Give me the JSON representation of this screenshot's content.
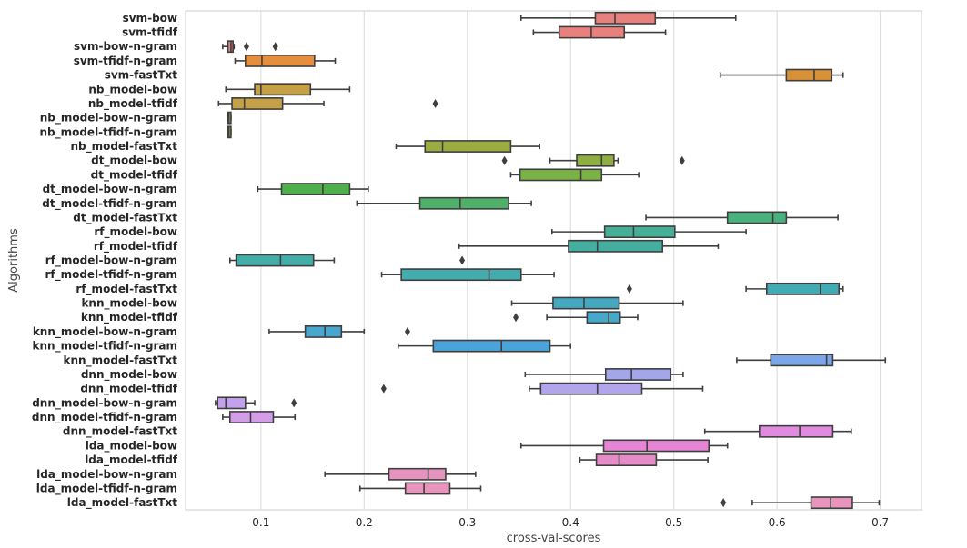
{
  "chart_data": {
    "type": "boxplot",
    "orientation": "horizontal",
    "xlabel": "cross-val-scores",
    "ylabel": "Algorithms",
    "xlim": [
      0.027,
      0.74
    ],
    "xticks": [
      0.1,
      0.2,
      0.3,
      0.4,
      0.5,
      0.6,
      0.7
    ],
    "xtick_labels": [
      "0.1",
      "0.2",
      "0.3",
      "0.4",
      "0.5",
      "0.6",
      "0.7"
    ],
    "grid": "vertical",
    "categories": [
      "svm-bow",
      "svm-tfidf",
      "svm-bow-n-gram",
      "svm-tfidf-n-gram",
      "svm-fastTxt",
      "nb_model-bow",
      "nb_model-tfidf",
      "nb_model-bow-n-gram",
      "nb_model-tfidf-n-gram",
      "nb_model-fastTxt",
      "dt_model-bow",
      "dt_model-tfidf",
      "dt_model-bow-n-gram",
      "dt_model-tfidf-n-gram",
      "dt_model-fastTxt",
      "rf_model-bow",
      "rf_model-tfidf",
      "rf_model-bow-n-gram",
      "rf_model-tfidf-n-gram",
      "rf_model-fastTxt",
      "knn_model-bow",
      "knn_model-tfidf",
      "knn_model-bow-n-gram",
      "knn_model-tfidf-n-gram",
      "knn_model-fastTxt",
      "dnn_model-bow",
      "dnn_model-tfidf",
      "dnn_model-bow-n-gram",
      "dnn_model-tfidf-n-gram",
      "dnn_model-fastTxt",
      "lda_model-bow",
      "lda_model-tfidf",
      "lda_model-bow-n-gram",
      "lda_model-tfidf-n-gram",
      "lda_model-fastTxt"
    ],
    "boxes": [
      {
        "min": 0.352,
        "q1": 0.424,
        "median": 0.443,
        "q3": 0.482,
        "max": 0.56,
        "outliers": [],
        "color": "#e8817e"
      },
      {
        "min": 0.364,
        "q1": 0.389,
        "median": 0.42,
        "q3": 0.452,
        "max": 0.492,
        "outliers": [],
        "color": "#e8817e"
      },
      {
        "min": 0.063,
        "q1": 0.068,
        "median": 0.071,
        "q3": 0.073,
        "max": 0.074,
        "outliers": [
          0.086,
          0.114
        ],
        "color": "#e8817e"
      },
      {
        "min": 0.075,
        "q1": 0.085,
        "median": 0.101,
        "q3": 0.152,
        "max": 0.172,
        "outliers": [],
        "color": "#e58e3e"
      },
      {
        "min": 0.545,
        "q1": 0.609,
        "median": 0.636,
        "q3": 0.653,
        "max": 0.664,
        "outliers": [],
        "color": "#d99138"
      },
      {
        "min": 0.066,
        "q1": 0.094,
        "median": 0.1,
        "q3": 0.148,
        "max": 0.186,
        "outliers": [],
        "color": "#c6a046"
      },
      {
        "min": 0.059,
        "q1": 0.072,
        "median": 0.084,
        "q3": 0.121,
        "max": 0.161,
        "outliers": [
          0.269
        ],
        "color": "#c6a046"
      },
      {
        "min": 0.068,
        "q1": 0.068,
        "median": 0.069,
        "q3": 0.071,
        "max": 0.071,
        "outliers": [],
        "color": "#b9a645"
      },
      {
        "min": 0.068,
        "q1": 0.068,
        "median": 0.069,
        "q3": 0.071,
        "max": 0.071,
        "outliers": [],
        "color": "#a9ab43"
      },
      {
        "min": 0.231,
        "q1": 0.259,
        "median": 0.276,
        "q3": 0.342,
        "max": 0.37,
        "outliers": [],
        "color": "#9cab40"
      },
      {
        "min": 0.38,
        "q1": 0.406,
        "median": 0.43,
        "q3": 0.442,
        "max": 0.446,
        "outliers": [
          0.336,
          0.508
        ],
        "color": "#8fae42"
      },
      {
        "min": 0.342,
        "q1": 0.351,
        "median": 0.41,
        "q3": 0.43,
        "max": 0.466,
        "outliers": [],
        "color": "#7ab245"
      },
      {
        "min": 0.097,
        "q1": 0.12,
        "median": 0.16,
        "q3": 0.186,
        "max": 0.204,
        "outliers": [],
        "color": "#4eb04a"
      },
      {
        "min": 0.193,
        "q1": 0.254,
        "median": 0.293,
        "q3": 0.34,
        "max": 0.362,
        "outliers": [],
        "color": "#4fb06a"
      },
      {
        "min": 0.473,
        "q1": 0.552,
        "median": 0.596,
        "q3": 0.609,
        "max": 0.659,
        "outliers": [],
        "color": "#48b17e"
      },
      {
        "min": 0.382,
        "q1": 0.433,
        "median": 0.461,
        "q3": 0.501,
        "max": 0.57,
        "outliers": [],
        "color": "#45b095"
      },
      {
        "min": 0.292,
        "q1": 0.398,
        "median": 0.426,
        "q3": 0.489,
        "max": 0.543,
        "outliers": [],
        "color": "#45af9f"
      },
      {
        "min": 0.07,
        "q1": 0.076,
        "median": 0.119,
        "q3": 0.151,
        "max": 0.171,
        "outliers": [
          0.295
        ],
        "color": "#43ada8"
      },
      {
        "min": 0.217,
        "q1": 0.236,
        "median": 0.321,
        "q3": 0.352,
        "max": 0.384,
        "outliers": [],
        "color": "#42acaf"
      },
      {
        "min": 0.57,
        "q1": 0.59,
        "median": 0.642,
        "q3": 0.66,
        "max": 0.664,
        "outliers": [
          0.457
        ],
        "color": "#41abb5"
      },
      {
        "min": 0.343,
        "q1": 0.383,
        "median": 0.413,
        "q3": 0.447,
        "max": 0.509,
        "outliers": [],
        "color": "#44a9c0"
      },
      {
        "min": 0.377,
        "q1": 0.416,
        "median": 0.437,
        "q3": 0.448,
        "max": 0.465,
        "outliers": [
          0.347
        ],
        "color": "#47a8c7"
      },
      {
        "min": 0.108,
        "q1": 0.143,
        "median": 0.162,
        "q3": 0.178,
        "max": 0.2,
        "outliers": [
          0.242
        ],
        "color": "#49a6cd"
      },
      {
        "min": 0.233,
        "q1": 0.267,
        "median": 0.333,
        "q3": 0.38,
        "max": 0.4,
        "outliers": [],
        "color": "#4aa3d9"
      },
      {
        "min": 0.561,
        "q1": 0.594,
        "median": 0.648,
        "q3": 0.654,
        "max": 0.705,
        "outliers": [],
        "color": "#7ca6e6"
      },
      {
        "min": 0.356,
        "q1": 0.434,
        "median": 0.459,
        "q3": 0.497,
        "max": 0.509,
        "outliers": [],
        "color": "#a4a6ec"
      },
      {
        "min": 0.36,
        "q1": 0.371,
        "median": 0.426,
        "q3": 0.469,
        "max": 0.528,
        "outliers": [
          0.219
        ],
        "color": "#b3a4ee"
      },
      {
        "min": 0.056,
        "q1": 0.058,
        "median": 0.066,
        "q3": 0.085,
        "max": 0.094,
        "outliers": [
          0.132
        ],
        "color": "#c3a1ec"
      },
      {
        "min": 0.063,
        "q1": 0.07,
        "median": 0.09,
        "q3": 0.112,
        "max": 0.133,
        "outliers": [],
        "color": "#d39de8"
      },
      {
        "min": 0.53,
        "q1": 0.583,
        "median": 0.622,
        "q3": 0.654,
        "max": 0.672,
        "outliers": [],
        "color": "#e08bdf"
      },
      {
        "min": 0.352,
        "q1": 0.432,
        "median": 0.474,
        "q3": 0.534,
        "max": 0.552,
        "outliers": [],
        "color": "#e685d4"
      },
      {
        "min": 0.409,
        "q1": 0.425,
        "median": 0.447,
        "q3": 0.483,
        "max": 0.533,
        "outliers": [],
        "color": "#e78bc8"
      },
      {
        "min": 0.162,
        "q1": 0.224,
        "median": 0.262,
        "q3": 0.279,
        "max": 0.308,
        "outliers": [],
        "color": "#e793c0"
      },
      {
        "min": 0.196,
        "q1": 0.24,
        "median": 0.258,
        "q3": 0.283,
        "max": 0.313,
        "outliers": [],
        "color": "#e795bd"
      },
      {
        "min": 0.576,
        "q1": 0.633,
        "median": 0.652,
        "q3": 0.673,
        "max": 0.699,
        "outliers": [
          0.548
        ],
        "color": "#e795bd"
      }
    ]
  }
}
